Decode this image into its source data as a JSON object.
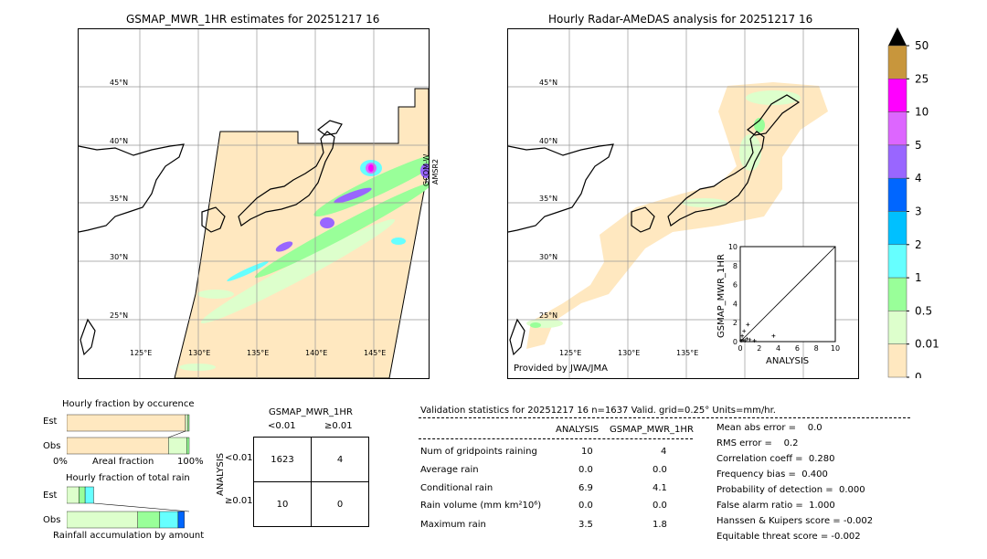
{
  "left_map": {
    "title": "GSMAP_MWR_1HR estimates for 20251217 16",
    "side_label_1": "GCOM-W",
    "side_label_2": "AMSR2",
    "lat_labels": [
      "45°N",
      "40°N",
      "35°N",
      "30°N",
      "25°N"
    ],
    "lon_labels": [
      "125°E",
      "130°E",
      "135°E",
      "140°E",
      "145°E"
    ]
  },
  "right_map": {
    "title": "Hourly Radar-AMeDAS analysis for 20251217 16",
    "credit": "Provided by JWA/JMA",
    "lat_labels": [
      "45°N",
      "40°N",
      "35°N",
      "30°N",
      "25°N"
    ],
    "lon_labels": [
      "125°E",
      "130°E",
      "135°E"
    ]
  },
  "colorbar": {
    "labels": [
      "50",
      "25",
      "10",
      "5",
      "4",
      "3",
      "2",
      "1",
      "0.5",
      "0.01",
      "0"
    ],
    "colors": [
      "#c8963c",
      "#ff00ff",
      "#dd66ff",
      "#9966ff",
      "#0066ff",
      "#00c0ff",
      "#66ffff",
      "#99ff99",
      "#ddffcc",
      "#ffe8c0"
    ],
    "extend_color": "#000000"
  },
  "chart_data": [
    {
      "type": "scatter",
      "title": "",
      "xlabel": "ANALYSIS",
      "ylabel": "GSMAP_MWR_1HR",
      "xlim": [
        0,
        10
      ],
      "ylim": [
        0,
        10
      ],
      "xticks": [
        "0",
        "2",
        "4",
        "6",
        "8",
        "10"
      ],
      "yticks": [
        "0",
        "2",
        "4",
        "6",
        "8",
        "10"
      ],
      "points": [
        {
          "x": 0.1,
          "y": 0.1
        },
        {
          "x": 0.3,
          "y": 0.2
        },
        {
          "x": 0.5,
          "y": 0.1
        },
        {
          "x": 0.2,
          "y": 0.6
        },
        {
          "x": 0.7,
          "y": 0.3
        },
        {
          "x": 1.0,
          "y": 0.2
        },
        {
          "x": 0.4,
          "y": 1.1
        },
        {
          "x": 1.5,
          "y": 0.1
        },
        {
          "x": 0.8,
          "y": 1.8
        },
        {
          "x": 3.5,
          "y": 0.6
        }
      ]
    },
    {
      "type": "bar",
      "title": "Hourly fraction by occurence",
      "categories": [
        "Est",
        "Obs"
      ],
      "xlabel": "Areal fraction",
      "xtick_left": "0%",
      "xtick_right": "100%",
      "series": [
        {
          "values": [
            0.97,
            0.83
          ]
        },
        {
          "values": [
            0.02,
            0.15
          ]
        },
        {
          "values": [
            0.01,
            0.02
          ]
        }
      ],
      "colors": [
        "#ffe8c0",
        "#ddffcc",
        "#99ff99"
      ]
    },
    {
      "type": "bar",
      "title": "Hourly fraction of total rain",
      "categories": [
        "Est",
        "Obs"
      ],
      "xlabel": "Rainfall accumulation by amount",
      "segments": {
        "Est": [
          {
            "color": "#ddffcc",
            "value": 0.1
          },
          {
            "color": "#99ff99",
            "value": 0.05
          },
          {
            "color": "#66ffff",
            "value": 0.07
          }
        ],
        "Obs": [
          {
            "color": "#ddffcc",
            "value": 0.58
          },
          {
            "color": "#99ff99",
            "value": 0.18
          },
          {
            "color": "#66ffff",
            "value": 0.15
          },
          {
            "color": "#0066ff",
            "value": 0.05
          }
        ]
      }
    }
  ],
  "contingency": {
    "title": "GSMAP_MWR_1HR",
    "col_headers": [
      "<0.01",
      "≥0.01"
    ],
    "row_axis_label": "ANALYSIS",
    "row_headers": [
      "<0.01",
      "≥0.01"
    ],
    "cells": [
      [
        "1623",
        "4"
      ],
      [
        "10",
        "0"
      ]
    ]
  },
  "stats": {
    "header": "Validation statistics for 20251217 16  n=1637 Valid. grid=0.25° Units=mm/hr.",
    "col_analysis": "ANALYSIS",
    "col_gsmap": "GSMAP_MWR_1HR",
    "rows": [
      {
        "label": "Num of gridpoints raining",
        "a": "10",
        "g": "4"
      },
      {
        "label": "Average rain",
        "a": "0.0",
        "g": "0.0"
      },
      {
        "label": "Conditional rain",
        "a": "6.9",
        "g": "4.1"
      },
      {
        "label": "Rain volume (mm km²10⁶)",
        "a": "0.0",
        "g": "0.0"
      },
      {
        "label": "Maximum rain",
        "a": "3.5",
        "g": "1.8"
      }
    ],
    "scores": [
      "Mean abs error =    0.0",
      "RMS error =    0.2",
      "Correlation coeff =  0.280",
      "Frequency bias =  0.400",
      "Probability of detection =  0.000",
      "False alarm ratio =  1.000",
      "Hanssen & Kuipers score = -0.002",
      "Equitable threat score = -0.002"
    ]
  }
}
